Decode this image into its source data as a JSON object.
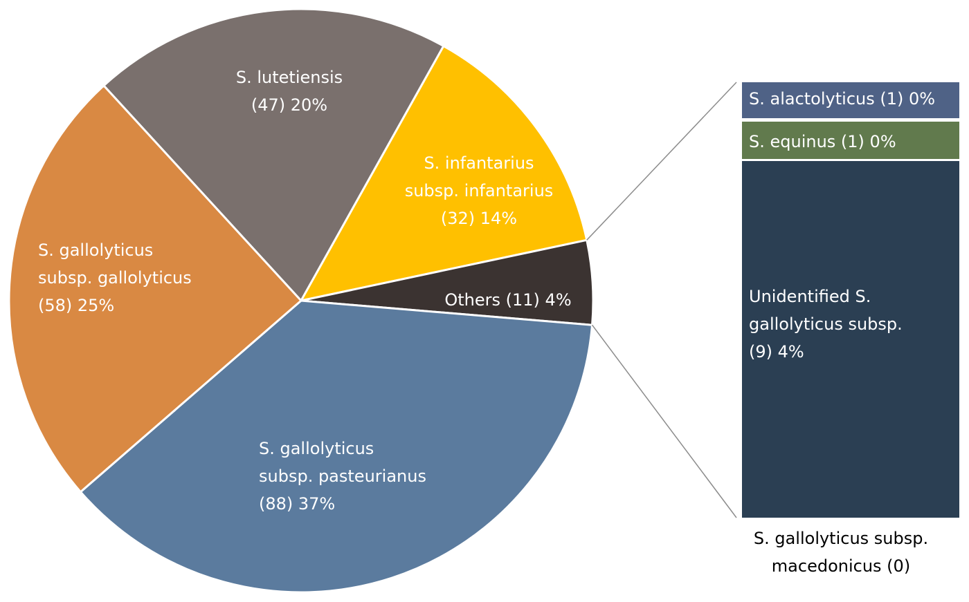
{
  "chart_data": [
    {
      "type": "pie",
      "slices": [
        {
          "label_lines": [
            "S. lutetiensis",
            "(47) 20%"
          ],
          "count": 47,
          "percent": 20,
          "color": "#7a706d",
          "text_color": "#ffffff"
        },
        {
          "label_lines": [
            "S. infantarius",
            "subsp. infantarius",
            "(32) 14%"
          ],
          "count": 32,
          "percent": 14,
          "color": "#ffc000",
          "text_color": "#ffffff"
        },
        {
          "label_lines": [
            "Others (11) 4%"
          ],
          "count": 11,
          "percent": 4,
          "color": "#3b3331",
          "text_color": "#ffffff"
        },
        {
          "label_lines": [
            "S. gallolyticus",
            "subsp. pasteurianus",
            "(88) 37%"
          ],
          "count": 88,
          "percent": 37,
          "color": "#5b7b9e",
          "text_color": "#ffffff"
        },
        {
          "label_lines": [
            "S. gallolyticus",
            "subsp. gallolyticus",
            "(58) 25%"
          ],
          "count": 58,
          "percent": 25,
          "color": "#d98943",
          "text_color": "#ffffff"
        }
      ]
    },
    {
      "type": "bar",
      "stacked": true,
      "breakdown_of": "Others (11) 4%",
      "segments": [
        {
          "label_lines": [
            "S. alactolyticus (1) 0%"
          ],
          "count": 1,
          "percent": 0,
          "color": "#4f6286",
          "text_color": "#ffffff"
        },
        {
          "label_lines": [
            "S. equinus (1) 0%"
          ],
          "count": 1,
          "percent": 0,
          "color": "#617a4d",
          "text_color": "#ffffff"
        },
        {
          "label_lines": [
            "Unidentified  S.",
            "gallolyticus subsp.",
            "(9) 4%"
          ],
          "count": 9,
          "percent": 4,
          "color": "#2b3f53",
          "text_color": "#ffffff"
        }
      ],
      "footer_lines": [
        "S. gallolyticus subsp.",
        "macedonicus (0)"
      ]
    }
  ]
}
